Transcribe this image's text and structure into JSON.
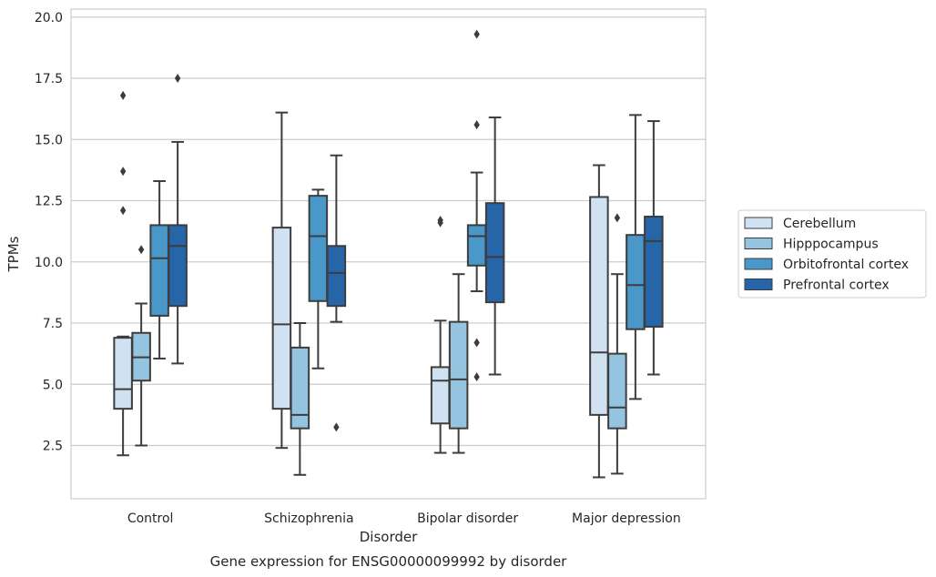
{
  "chart_data": {
    "type": "box",
    "caption": "Gene expression for ENSG00000099992 by disorder",
    "xlabel": "Disorder",
    "ylabel": "TPMs",
    "ylim": [
      0.2,
      20.3
    ],
    "yticks": [
      "2.5",
      "5.0",
      "7.5",
      "10.0",
      "12.5",
      "15.0",
      "17.5",
      "20.0"
    ],
    "grid": true,
    "legend_position": "right",
    "categories": [
      "Control",
      "Schizophrenia",
      "Bipolar disorder",
      "Major depression"
    ],
    "series": [
      {
        "name": "Cerebellum",
        "color": "#d0e1f2",
        "boxes": [
          {
            "min": 2.1,
            "q1": 4.0,
            "median": 4.8,
            "q3": 6.9,
            "max": 6.95,
            "outliers": [
              12.1,
              13.7,
              16.8
            ]
          },
          {
            "min": 2.4,
            "q1": 4.0,
            "median": 7.45,
            "q3": 11.4,
            "max": 16.1,
            "outliers": []
          },
          {
            "min": 2.2,
            "q1": 3.4,
            "median": 5.15,
            "q3": 5.7,
            "max": 7.6,
            "outliers": [
              11.6,
              11.7
            ]
          },
          {
            "min": 1.2,
            "q1": 3.75,
            "median": 6.3,
            "q3": 12.65,
            "max": 13.95,
            "outliers": []
          }
        ]
      },
      {
        "name": "Hipppocampus",
        "color": "#94c4df",
        "boxes": [
          {
            "min": 2.5,
            "q1": 5.15,
            "median": 6.1,
            "q3": 7.1,
            "max": 8.3,
            "outliers": [
              10.5
            ]
          },
          {
            "min": 1.3,
            "q1": 3.2,
            "median": 3.75,
            "q3": 6.5,
            "max": 7.5,
            "outliers": []
          },
          {
            "min": 2.2,
            "q1": 3.2,
            "median": 5.2,
            "q3": 7.55,
            "max": 9.5,
            "outliers": []
          },
          {
            "min": 1.35,
            "q1": 3.2,
            "median": 4.05,
            "q3": 6.25,
            "max": 9.5,
            "outliers": [
              11.8
            ]
          }
        ]
      },
      {
        "name": "Orbitofrontal cortex",
        "color": "#4a98c9",
        "boxes": [
          {
            "min": 6.05,
            "q1": 7.8,
            "median": 10.15,
            "q3": 11.5,
            "max": 13.3,
            "outliers": []
          },
          {
            "min": 5.65,
            "q1": 8.4,
            "median": 11.05,
            "q3": 12.7,
            "max": 12.95,
            "outliers": []
          },
          {
            "min": 8.8,
            "q1": 9.85,
            "median": 11.05,
            "q3": 11.5,
            "max": 13.65,
            "outliers": [
              5.3,
              6.7,
              15.6,
              19.3
            ]
          },
          {
            "min": 4.4,
            "q1": 7.25,
            "median": 9.05,
            "q3": 11.1,
            "max": 16.0,
            "outliers": []
          }
        ]
      },
      {
        "name": "Prefrontal cortex",
        "color": "#2565a8",
        "boxes": [
          {
            "min": 5.85,
            "q1": 8.2,
            "median": 10.65,
            "q3": 11.5,
            "max": 14.9,
            "outliers": [
              17.5
            ]
          },
          {
            "min": 7.55,
            "q1": 8.2,
            "median": 9.55,
            "q3": 10.65,
            "max": 14.35,
            "outliers": [
              3.25
            ]
          },
          {
            "min": 5.4,
            "q1": 8.35,
            "median": 10.2,
            "q3": 12.4,
            "max": 15.9,
            "outliers": []
          },
          {
            "min": 5.4,
            "q1": 7.35,
            "median": 10.85,
            "q3": 11.85,
            "max": 15.75,
            "outliers": []
          }
        ]
      }
    ]
  }
}
